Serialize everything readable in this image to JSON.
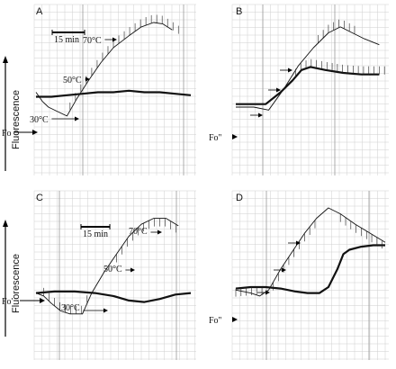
{
  "y_axis_label": "Fluorescence",
  "chart_data": [
    {
      "type": "line",
      "panel": "A",
      "scale_bar_label": "15 min",
      "baseline_label": "Fo",
      "temperature_marks": [
        "30°C",
        "50°C",
        "70°C"
      ],
      "series": [
        {
          "values": [
            [
              0,
              0.5
            ],
            [
              0.04,
              0.44
            ],
            [
              0.08,
              0.4
            ],
            [
              0.14,
              0.37
            ],
            [
              0.2,
              0.34
            ],
            [
              0.26,
              0.45
            ],
            [
              0.34,
              0.58
            ],
            [
              0.42,
              0.7
            ],
            [
              0.5,
              0.8
            ],
            [
              0.6,
              0.88
            ],
            [
              0.68,
              0.94
            ],
            [
              0.76,
              0.97
            ],
            [
              0.82,
              0.96
            ],
            [
              0.88,
              0.92
            ]
          ]
        },
        {
          "values": [
            [
              0,
              0.47
            ],
            [
              0.1,
              0.47
            ],
            [
              0.2,
              0.48
            ],
            [
              0.3,
              0.49
            ],
            [
              0.4,
              0.5
            ],
            [
              0.5,
              0.5
            ],
            [
              0.6,
              0.51
            ],
            [
              0.7,
              0.5
            ],
            [
              0.8,
              0.5
            ],
            [
              0.9,
              0.49
            ],
            [
              1.0,
              0.48
            ]
          ]
        }
      ]
    },
    {
      "type": "line",
      "panel": "B",
      "baseline_label": "Fo''",
      "series": [
        {
          "values": [
            [
              0,
              0.4
            ],
            [
              0.12,
              0.4
            ],
            [
              0.22,
              0.38
            ],
            [
              0.32,
              0.52
            ],
            [
              0.42,
              0.68
            ],
            [
              0.52,
              0.8
            ],
            [
              0.62,
              0.9
            ],
            [
              0.7,
              0.94
            ],
            [
              0.78,
              0.9
            ],
            [
              0.86,
              0.86
            ],
            [
              0.96,
              0.82
            ]
          ]
        },
        {
          "values": [
            [
              0,
              0.42
            ],
            [
              0.12,
              0.42
            ],
            [
              0.2,
              0.42
            ],
            [
              0.3,
              0.5
            ],
            [
              0.38,
              0.58
            ],
            [
              0.44,
              0.65
            ],
            [
              0.5,
              0.67
            ],
            [
              0.6,
              0.65
            ],
            [
              0.72,
              0.63
            ],
            [
              0.84,
              0.62
            ],
            [
              0.96,
              0.62
            ]
          ]
        }
      ]
    },
    {
      "type": "line",
      "panel": "C",
      "scale_bar_label": "15 min",
      "baseline_label": "Fo'",
      "temperature_marks": [
        "30°C",
        "50°C",
        "70°C"
      ],
      "series": [
        {
          "values": [
            [
              0,
              0.4
            ],
            [
              0.05,
              0.38
            ],
            [
              0.1,
              0.33
            ],
            [
              0.16,
              0.28
            ],
            [
              0.22,
              0.26
            ],
            [
              0.3,
              0.26
            ],
            [
              0.36,
              0.4
            ],
            [
              0.44,
              0.54
            ],
            [
              0.52,
              0.66
            ],
            [
              0.6,
              0.78
            ],
            [
              0.68,
              0.86
            ],
            [
              0.76,
              0.9
            ],
            [
              0.84,
              0.9
            ],
            [
              0.92,
              0.85
            ]
          ]
        },
        {
          "values": [
            [
              0,
              0.4
            ],
            [
              0.12,
              0.41
            ],
            [
              0.25,
              0.41
            ],
            [
              0.38,
              0.4
            ],
            [
              0.5,
              0.38
            ],
            [
              0.6,
              0.35
            ],
            [
              0.7,
              0.34
            ],
            [
              0.8,
              0.36
            ],
            [
              0.9,
              0.39
            ],
            [
              1.0,
              0.4
            ]
          ]
        }
      ]
    },
    {
      "type": "line",
      "panel": "D",
      "baseline_label": "Fo''",
      "series": [
        {
          "values": [
            [
              0,
              0.42
            ],
            [
              0.1,
              0.4
            ],
            [
              0.16,
              0.38
            ],
            [
              0.22,
              0.42
            ],
            [
              0.3,
              0.56
            ],
            [
              0.38,
              0.68
            ],
            [
              0.46,
              0.8
            ],
            [
              0.54,
              0.9
            ],
            [
              0.62,
              0.97
            ],
            [
              0.7,
              0.93
            ],
            [
              0.8,
              0.86
            ],
            [
              0.9,
              0.8
            ],
            [
              1.0,
              0.74
            ]
          ]
        },
        {
          "values": [
            [
              0,
              0.43
            ],
            [
              0.1,
              0.44
            ],
            [
              0.2,
              0.44
            ],
            [
              0.3,
              0.43
            ],
            [
              0.4,
              0.41
            ],
            [
              0.48,
              0.4
            ],
            [
              0.56,
              0.4
            ],
            [
              0.62,
              0.44
            ],
            [
              0.68,
              0.56
            ],
            [
              0.72,
              0.66
            ],
            [
              0.76,
              0.69
            ],
            [
              0.84,
              0.71
            ],
            [
              0.92,
              0.72
            ],
            [
              1.0,
              0.72
            ]
          ]
        }
      ]
    }
  ]
}
